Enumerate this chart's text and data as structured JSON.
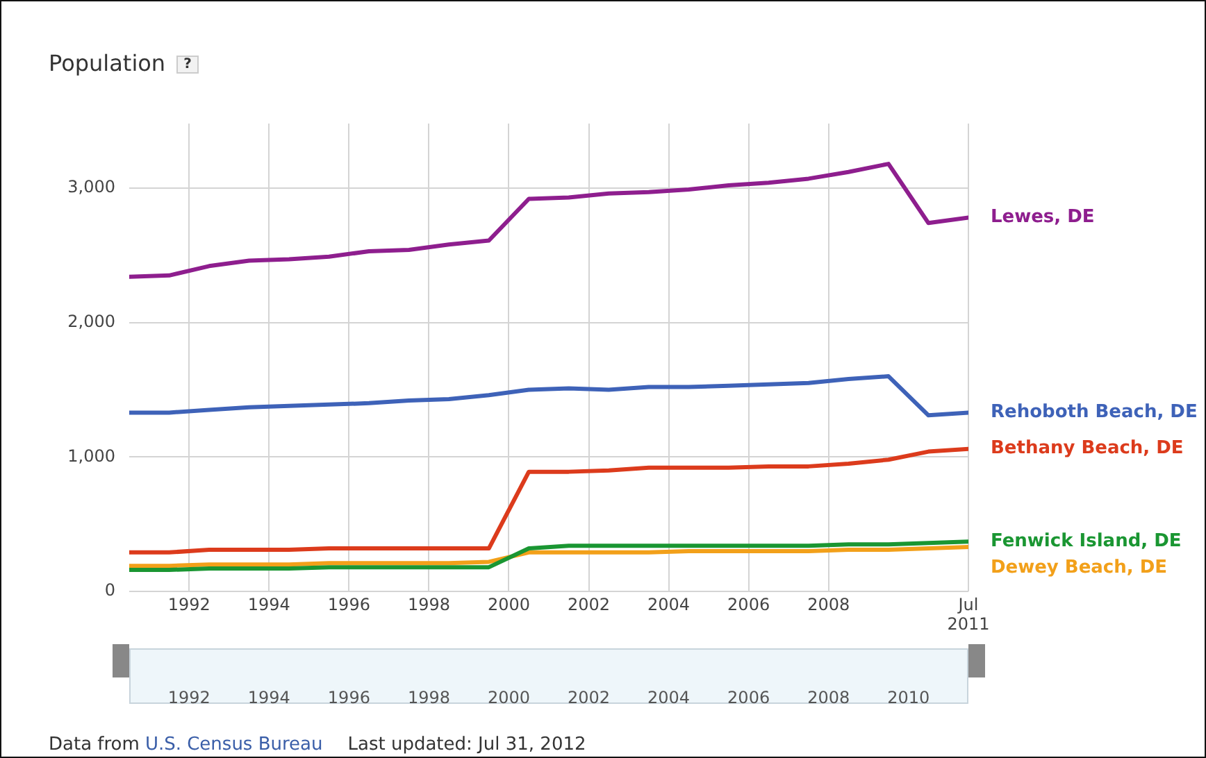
{
  "chart_data": {
    "type": "line",
    "title": "Population",
    "x": [
      1990.5,
      1991.5,
      1992.5,
      1993.5,
      1994.5,
      1995.5,
      1996.5,
      1997.5,
      1998.5,
      1999.5,
      2000.5,
      2001.5,
      2002.5,
      2003.5,
      2004.5,
      2005.5,
      2006.5,
      2007.5,
      2008.5,
      2009.5,
      2010.5,
      2011.5
    ],
    "series": [
      {
        "name": "Lewes, DE",
        "color": "#8e1e8e",
        "values": [
          2340,
          2350,
          2420,
          2460,
          2470,
          2490,
          2530,
          2540,
          2580,
          2610,
          2920,
          2930,
          2960,
          2970,
          2990,
          3020,
          3040,
          3070,
          3120,
          3180,
          2740,
          2780
        ]
      },
      {
        "name": "Rehoboth Beach, DE",
        "color": "#3e62b8",
        "values": [
          1330,
          1330,
          1350,
          1370,
          1380,
          1390,
          1400,
          1420,
          1430,
          1460,
          1500,
          1510,
          1500,
          1520,
          1520,
          1530,
          1540,
          1550,
          1580,
          1600,
          1310,
          1330
        ]
      },
      {
        "name": "Bethany Beach, DE",
        "color": "#dc3b1c",
        "values": [
          290,
          290,
          310,
          310,
          310,
          320,
          320,
          320,
          320,
          320,
          890,
          890,
          900,
          920,
          920,
          920,
          930,
          930,
          950,
          980,
          1040,
          1060
        ]
      },
      {
        "name": "Fenwick Island, DE",
        "color": "#1a9632",
        "values": [
          160,
          160,
          170,
          170,
          170,
          180,
          180,
          180,
          180,
          180,
          320,
          340,
          340,
          340,
          340,
          340,
          340,
          340,
          350,
          350,
          360,
          370
        ]
      },
      {
        "name": "Dewey Beach, DE",
        "color": "#f2a01a",
        "values": [
          190,
          190,
          200,
          200,
          200,
          210,
          210,
          210,
          210,
          220,
          290,
          290,
          290,
          290,
          300,
          300,
          300,
          300,
          310,
          310,
          320,
          330
        ]
      }
    ],
    "xlim": [
      1990.5,
      2011.5
    ],
    "xticks": [
      1992,
      1994,
      1996,
      1998,
      2000,
      2002,
      2004,
      2006,
      2008,
      {
        "value": 2011.5,
        "label": "Jul 2011"
      }
    ],
    "x2lim": [
      1990.5,
      2011.5
    ],
    "x2ticks": [
      1992,
      1994,
      1996,
      1998,
      2000,
      2002,
      2004,
      2006,
      2008,
      2010
    ],
    "ylim": [
      0,
      3480
    ],
    "yticks": [
      0,
      {
        "value": 1000,
        "label": "1,000"
      },
      {
        "value": 2000,
        "label": "2,000"
      },
      {
        "value": 3000,
        "label": "3,000"
      }
    ],
    "grid": true,
    "marker": "none",
    "line_style": "solid",
    "annotations": [
      "?",
      "Data from",
      "U.S. Census Bureau",
      "Last updated: Jul 31, 2012"
    ]
  }
}
